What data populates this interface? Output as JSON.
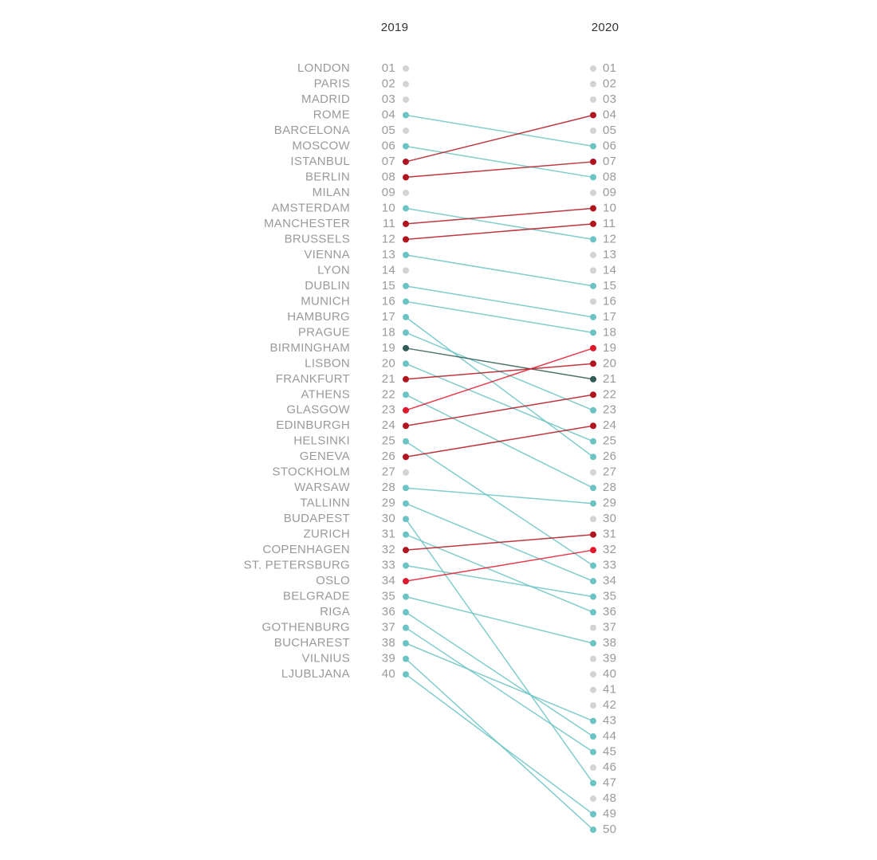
{
  "chart_data": {
    "type": "slope",
    "categories": [
      "LONDON",
      "PARIS",
      "MADRID",
      "ROME",
      "BARCELONA",
      "MOSCOW",
      "ISTANBUL",
      "BERLIN",
      "MILAN",
      "AMSTERDAM",
      "MANCHESTER",
      "BRUSSELS",
      "VIENNA",
      "LYON",
      "DUBLIN",
      "MUNICH",
      "HAMBURG",
      "PRAGUE",
      "BIRMINGHAM",
      "LISBON",
      "FRANKFURT",
      "ATHENS",
      "GLASGOW",
      "EDINBURGH",
      "HELSINKI",
      "GENEVA",
      "STOCKHOLM",
      "WARSAW",
      "TALLINN",
      "BUDAPEST",
      "ZURICH",
      "COPENHAGEN",
      "ST. PETERSBURG",
      "OSLO",
      "BELGRADE",
      "RIGA",
      "GOTHENBURG",
      "BUCHAREST",
      "VILNIUS",
      "LJUBLJANA"
    ],
    "series": [
      {
        "name": "2019",
        "values": [
          1,
          2,
          3,
          4,
          5,
          6,
          7,
          8,
          9,
          10,
          11,
          12,
          13,
          14,
          15,
          16,
          17,
          18,
          19,
          20,
          21,
          22,
          23,
          24,
          25,
          26,
          27,
          28,
          29,
          30,
          31,
          32,
          33,
          34,
          35,
          36,
          37,
          38,
          39,
          40
        ]
      },
      {
        "name": "2020",
        "values": [
          1,
          2,
          3,
          6,
          5,
          8,
          4,
          7,
          9,
          12,
          10,
          11,
          15,
          14,
          17,
          18,
          26,
          23,
          21,
          25,
          20,
          28,
          19,
          22,
          33,
          24,
          27,
          29,
          34,
          47,
          36,
          31,
          35,
          32,
          38,
          44,
          45,
          43,
          50,
          49
        ]
      }
    ],
    "colors": [
      "#d3d3d3",
      "#d3d3d3",
      "#d3d3d3",
      "#6cc3c3",
      "#d3d3d3",
      "#6cc3c3",
      "#b0141f",
      "#b0141f",
      "#d3d3d3",
      "#6cc3c3",
      "#b0141f",
      "#b0141f",
      "#6cc3c3",
      "#d3d3d3",
      "#6cc3c3",
      "#6cc3c3",
      "#6cc3c3",
      "#6cc3c3",
      "#2f5a56",
      "#6cc3c3",
      "#b0141f",
      "#6cc3c3",
      "#e0182d",
      "#b0141f",
      "#6cc3c3",
      "#b0141f",
      "#d3d3d3",
      "#6cc3c3",
      "#6cc3c3",
      "#6cc3c3",
      "#6cc3c3",
      "#b0141f",
      "#6cc3c3",
      "#e0182d",
      "#6cc3c3",
      "#6cc3c3",
      "#6cc3c3",
      "#6cc3c3",
      "#6cc3c3",
      "#6cc3c3"
    ],
    "empty_color": "#d3d3d3",
    "left_ticks": [
      {
        "value": 1,
        "label": "01"
      },
      {
        "value": 2,
        "label": "02"
      },
      {
        "value": 3,
        "label": "03"
      },
      {
        "value": 4,
        "label": "04"
      },
      {
        "value": 5,
        "label": "05"
      },
      {
        "value": 6,
        "label": "06"
      },
      {
        "value": 7,
        "label": "07"
      },
      {
        "value": 8,
        "label": "08"
      },
      {
        "value": 9,
        "label": "09"
      },
      10,
      11,
      12,
      13,
      14,
      15,
      16,
      17,
      18,
      19,
      20,
      21,
      22,
      23,
      24,
      25,
      26,
      27,
      28,
      29,
      30,
      31,
      32,
      33,
      34,
      35,
      36,
      37,
      38,
      39,
      40
    ],
    "right_ticks": [
      {
        "value": 1,
        "label": "01"
      },
      {
        "value": 2,
        "label": "02"
      },
      {
        "value": 3,
        "label": "03"
      },
      {
        "value": 4,
        "label": "04"
      },
      {
        "value": 5,
        "label": "05"
      },
      {
        "value": 6,
        "label": "06"
      },
      {
        "value": 7,
        "label": "07"
      },
      {
        "value": 8,
        "label": "08"
      },
      {
        "value": 9,
        "label": "09"
      },
      10,
      11,
      12,
      13,
      14,
      15,
      16,
      17,
      18,
      19,
      20,
      21,
      22,
      23,
      24,
      25,
      26,
      27,
      28,
      29,
      30,
      31,
      32,
      33,
      34,
      35,
      36,
      37,
      38,
      39,
      40,
      41,
      42,
      43,
      44,
      45,
      46,
      47,
      48,
      49,
      50
    ],
    "ylim": [
      1,
      50
    ]
  }
}
